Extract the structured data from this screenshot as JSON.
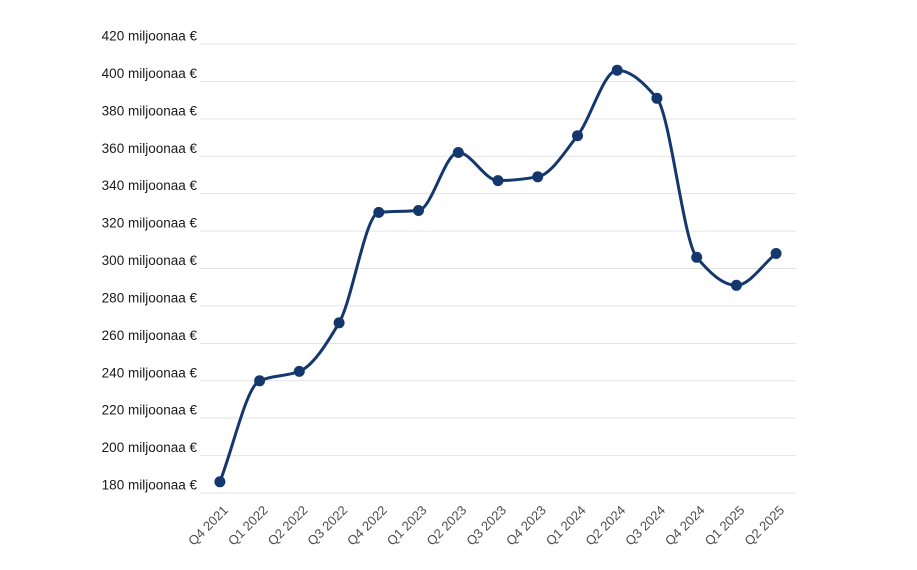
{
  "chart_data": {
    "type": "line",
    "title": "",
    "xlabel": "",
    "ylabel": "",
    "categories": [
      "Q4 2021",
      "Q1 2022",
      "Q2 2022",
      "Q3 2022",
      "Q4 2022",
      "Q1 2023",
      "Q2 2023",
      "Q3 2023",
      "Q4 2023",
      "Q1 2024",
      "Q2 2024",
      "Q3 2024",
      "Q4 2024",
      "Q1 2025",
      "Q2 2025"
    ],
    "series": [
      {
        "name": "",
        "values": [
          186,
          240,
          245,
          271,
          330,
          331,
          362,
          347,
          349,
          371,
          406,
          391,
          306,
          291,
          308
        ]
      }
    ],
    "unit_suffix": " miljoonaa €",
    "y_ticks": [
      180,
      200,
      220,
      240,
      260,
      280,
      300,
      320,
      340,
      360,
      380,
      400,
      420
    ],
    "y_tick_labels": [
      "180 miljoonaa €",
      "200 miljoonaa €",
      "220 miljoonaa €",
      "240 miljoonaa €",
      "260 miljoonaa €",
      "280 miljoonaa €",
      "300 miljoonaa €",
      "320 miljoonaa €",
      "340 miljoonaa €",
      "360 miljoonaa €",
      "380 miljoonaa €",
      "400 miljoonaa €",
      "420 miljoonaa €"
    ],
    "ylim": [
      180,
      420
    ],
    "grid": "horizontal",
    "legend": "none",
    "curve": "monotone",
    "marker": "circle",
    "colors": {
      "line": "#14386d",
      "marker": "#14386d",
      "grid": "#e3e3e3",
      "y_label": "#1a1a1a",
      "x_label": "#4d4d4d",
      "background": "#ffffff"
    }
  }
}
